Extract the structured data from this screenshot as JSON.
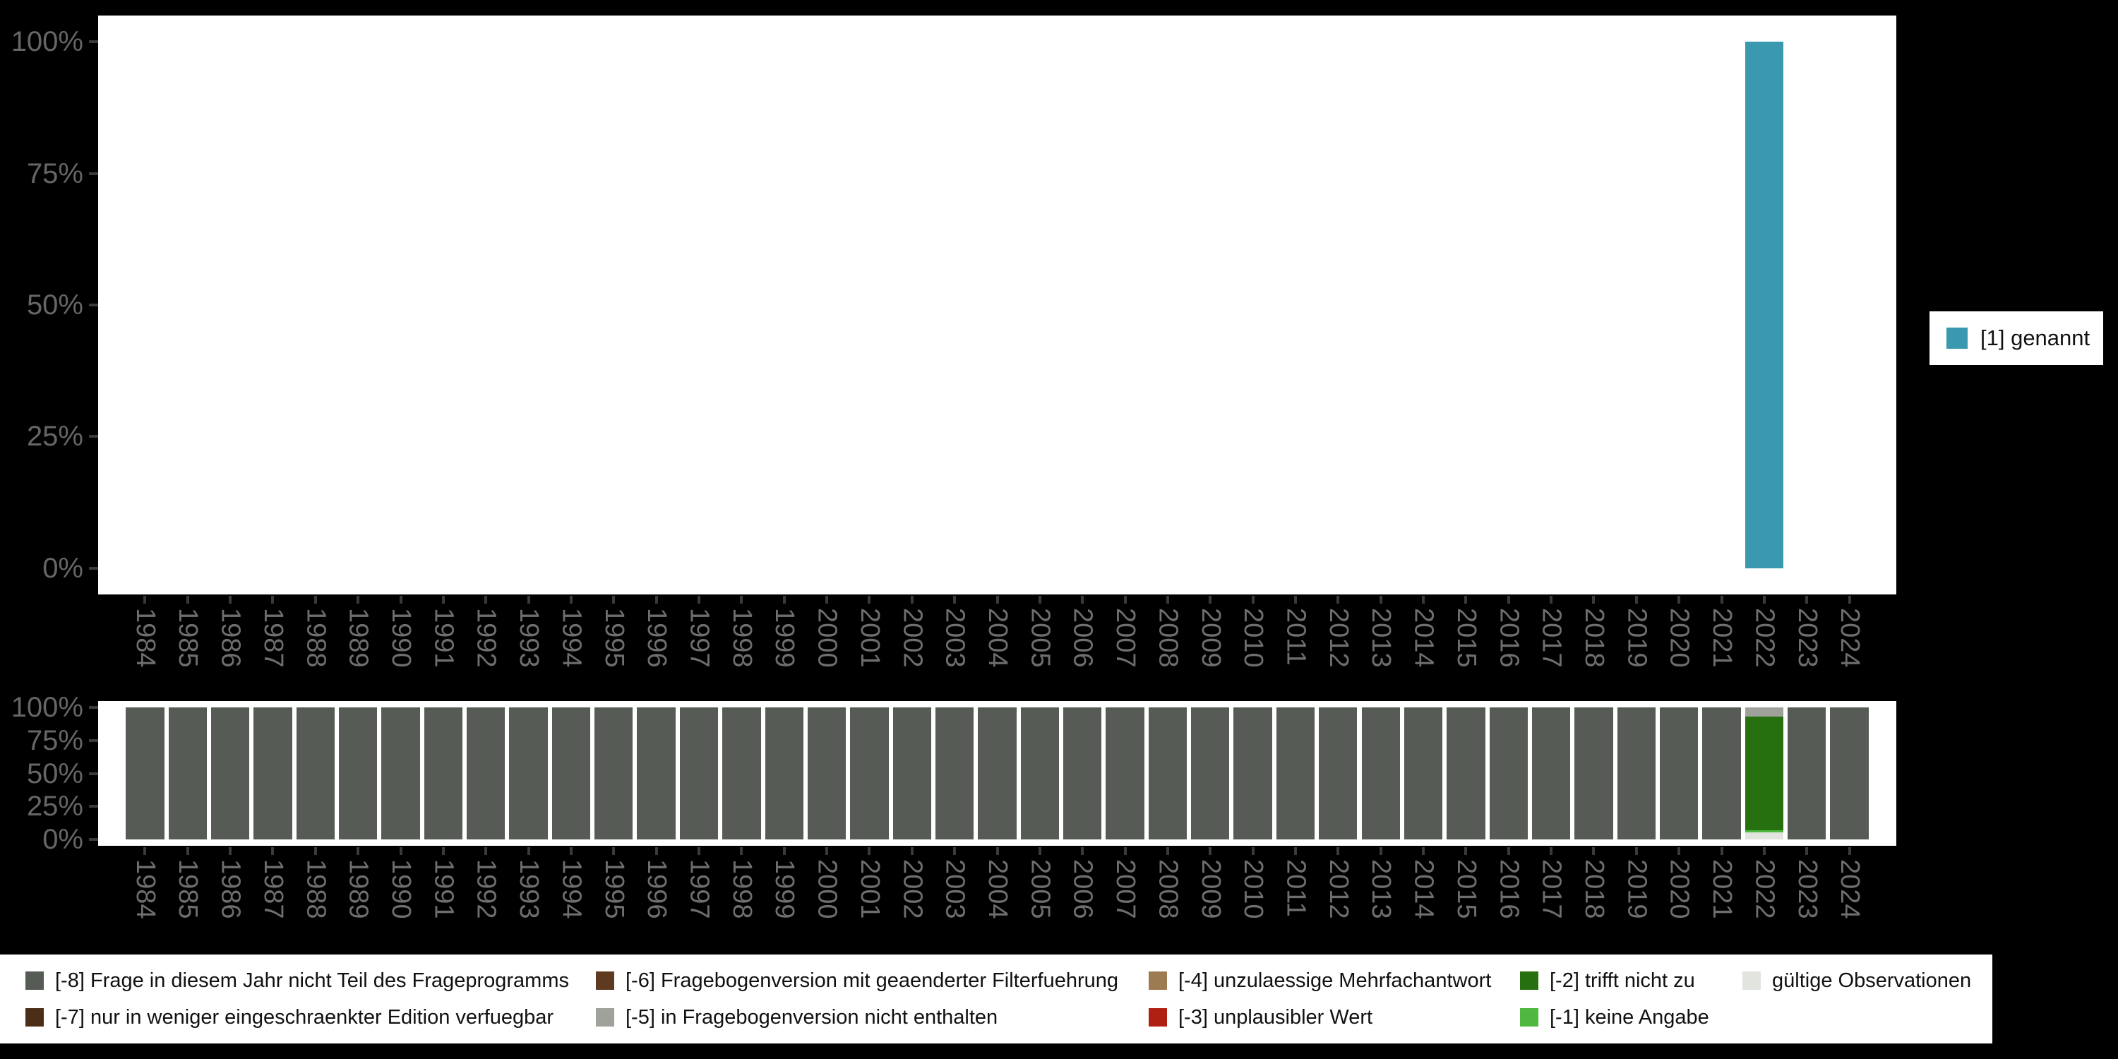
{
  "colors": {
    "background": "#000000",
    "panel": "#ffffff",
    "axis_label": "#666666",
    "tick": "#3a3a3a",
    "legend_background": "#ffffff",
    "legend_text": "#111111"
  },
  "legend_top": {
    "items": [
      {
        "label": "[1] genannt",
        "color": "#3a99af"
      }
    ]
  },
  "legend_bottom": {
    "columns": [
      {
        "items": [
          {
            "label": "[-8] Frage in diesem Jahr nicht Teil des Frageprogramms",
            "color": "#565c55"
          },
          {
            "label": "[-7] nur in weniger eingeschraenkter Edition verfuegbar",
            "color": "#4a2e18"
          }
        ]
      },
      {
        "items": [
          {
            "label": "[-6] Fragebogenversion mit geaenderter Filterfuehrung",
            "color": "#5e3b20"
          },
          {
            "label": "[-5] in Fragebogenversion nicht enthalten",
            "color": "#9fa29a"
          }
        ]
      },
      {
        "items": [
          {
            "label": "[-4] unzulaessige Mehrfachantwort",
            "color": "#9c7b52"
          },
          {
            "label": "[-3] unplausibler Wert",
            "color": "#b02012"
          }
        ]
      },
      {
        "items": [
          {
            "label": "[-2] trifft nicht zu",
            "color": "#27700f"
          },
          {
            "label": "[-1] keine Angabe",
            "color": "#4fb83e"
          }
        ]
      },
      {
        "items": [
          {
            "label": "gültige Observationen",
            "color": "#e2e5df"
          }
        ]
      }
    ]
  },
  "chart_data": [
    {
      "type": "bar",
      "title": "",
      "xlabel": "",
      "ylabel": "",
      "ylim": [
        0,
        100
      ],
      "grid": false,
      "legend_position": "right",
      "yticks": [
        "100%",
        "75%",
        "50%",
        "25%",
        "0%"
      ],
      "x": [
        "1984",
        "1985",
        "1986",
        "1987",
        "1988",
        "1989",
        "1990",
        "1991",
        "1992",
        "1993",
        "1994",
        "1995",
        "1996",
        "1997",
        "1998",
        "1999",
        "2000",
        "2001",
        "2002",
        "2003",
        "2004",
        "2005",
        "2006",
        "2007",
        "2008",
        "2009",
        "2010",
        "2011",
        "2012",
        "2013",
        "2014",
        "2015",
        "2016",
        "2017",
        "2018",
        "2019",
        "2020",
        "2021",
        "2022",
        "2023",
        "2024"
      ],
      "series": [
        {
          "name": "[1] genannt",
          "color": "#3a99af",
          "values": [
            0,
            0,
            0,
            0,
            0,
            0,
            0,
            0,
            0,
            0,
            0,
            0,
            0,
            0,
            0,
            0,
            0,
            0,
            0,
            0,
            0,
            0,
            0,
            0,
            0,
            0,
            0,
            0,
            0,
            0,
            0,
            0,
            0,
            0,
            0,
            0,
            0,
            0,
            100,
            0,
            0
          ]
        }
      ]
    },
    {
      "type": "bar",
      "title": "",
      "xlabel": "",
      "ylabel": "",
      "ylim": [
        0,
        100
      ],
      "grid": false,
      "legend_position": "bottom",
      "yticks": [
        "100%",
        "75%",
        "50%",
        "25%",
        "0%"
      ],
      "x": [
        "1984",
        "1985",
        "1986",
        "1987",
        "1988",
        "1989",
        "1990",
        "1991",
        "1992",
        "1993",
        "1994",
        "1995",
        "1996",
        "1997",
        "1998",
        "1999",
        "2000",
        "2001",
        "2002",
        "2003",
        "2004",
        "2005",
        "2006",
        "2007",
        "2008",
        "2009",
        "2010",
        "2011",
        "2012",
        "2013",
        "2014",
        "2015",
        "2016",
        "2017",
        "2018",
        "2019",
        "2020",
        "2021",
        "2022",
        "2023",
        "2024"
      ],
      "series": [
        {
          "name": "[-8] Frage in diesem Jahr nicht Teil des Frageprogramms",
          "color": "#565c55",
          "values": [
            100,
            100,
            100,
            100,
            100,
            100,
            100,
            100,
            100,
            100,
            100,
            100,
            100,
            100,
            100,
            100,
            100,
            100,
            100,
            100,
            100,
            100,
            100,
            100,
            100,
            100,
            100,
            100,
            100,
            100,
            100,
            100,
            100,
            100,
            100,
            100,
            100,
            100,
            0,
            100,
            100
          ]
        },
        {
          "name": "[-5] in Fragebogenversion nicht enthalten",
          "color": "#9fa29a",
          "values": [
            0,
            0,
            0,
            0,
            0,
            0,
            0,
            0,
            0,
            0,
            0,
            0,
            0,
            0,
            0,
            0,
            0,
            0,
            0,
            0,
            0,
            0,
            0,
            0,
            0,
            0,
            0,
            0,
            0,
            0,
            0,
            0,
            0,
            0,
            0,
            0,
            0,
            0,
            7,
            0,
            0
          ]
        },
        {
          "name": "[-2] trifft nicht zu",
          "color": "#27700f",
          "values": [
            0,
            0,
            0,
            0,
            0,
            0,
            0,
            0,
            0,
            0,
            0,
            0,
            0,
            0,
            0,
            0,
            0,
            0,
            0,
            0,
            0,
            0,
            0,
            0,
            0,
            0,
            0,
            0,
            0,
            0,
            0,
            0,
            0,
            0,
            0,
            0,
            0,
            0,
            86,
            0,
            0
          ]
        },
        {
          "name": "[-1] keine Angabe",
          "color": "#4fb83e",
          "values": [
            0,
            0,
            0,
            0,
            0,
            0,
            0,
            0,
            0,
            0,
            0,
            0,
            0,
            0,
            0,
            0,
            0,
            0,
            0,
            0,
            0,
            0,
            0,
            0,
            0,
            0,
            0,
            0,
            0,
            0,
            0,
            0,
            0,
            0,
            0,
            0,
            0,
            0,
            2,
            0,
            0
          ]
        },
        {
          "name": "gültige Observationen",
          "color": "#e2e5df",
          "values": [
            0,
            0,
            0,
            0,
            0,
            0,
            0,
            0,
            0,
            0,
            0,
            0,
            0,
            0,
            0,
            0,
            0,
            0,
            0,
            0,
            0,
            0,
            0,
            0,
            0,
            0,
            0,
            0,
            0,
            0,
            0,
            0,
            0,
            0,
            0,
            0,
            0,
            0,
            5,
            0,
            0
          ]
        }
      ]
    }
  ]
}
